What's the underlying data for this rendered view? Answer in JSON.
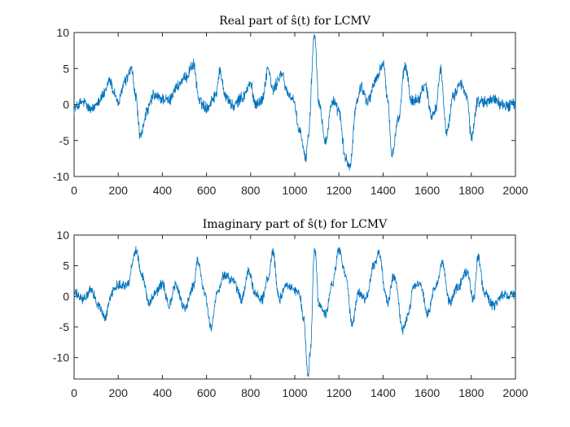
{
  "chart_data": [
    {
      "type": "line",
      "title": "Real part of ŝ(t) for LCMV",
      "xlabel": "",
      "ylabel": "",
      "xlim": [
        0,
        2000
      ],
      "ylim": [
        -10,
        10
      ],
      "xticks": [
        0,
        200,
        400,
        600,
        800,
        1000,
        1200,
        1400,
        1600,
        1800,
        2000
      ],
      "yticks": [
        -10,
        -5,
        0,
        5,
        10
      ],
      "grid": false,
      "series": [
        {
          "name": "Real part",
          "color": "#0072BD",
          "x": [
            0,
            40,
            80,
            110,
            140,
            160,
            180,
            200,
            230,
            260,
            280,
            300,
            330,
            360,
            400,
            430,
            460,
            500,
            540,
            570,
            600,
            640,
            660,
            690,
            720,
            760,
            800,
            820,
            850,
            880,
            900,
            940,
            970,
            990,
            1020,
            1050,
            1060,
            1090,
            1110,
            1140,
            1170,
            1200,
            1230,
            1250,
            1280,
            1300,
            1330,
            1370,
            1400,
            1420,
            1440,
            1470,
            1500,
            1530,
            1560,
            1590,
            1620,
            1640,
            1660,
            1690,
            1720,
            1750,
            1780,
            1800,
            1830,
            1860,
            1900,
            1950,
            2000
          ],
          "y": [
            -0.5,
            0.3,
            -0.8,
            0.6,
            1.5,
            3.5,
            1.8,
            0.2,
            3.2,
            4.8,
            1.0,
            -4.5,
            -1.0,
            1.2,
            0.8,
            0.5,
            2.3,
            3.5,
            5.5,
            0.3,
            -0.4,
            1.2,
            4.5,
            1.0,
            -0.3,
            0.9,
            2.8,
            0.2,
            0.5,
            5.0,
            2.0,
            4.2,
            1.5,
            0.9,
            -3.5,
            -7.5,
            -4.5,
            9.8,
            0.2,
            -5.0,
            0.5,
            -1.0,
            -7.5,
            -8.7,
            0.3,
            2.5,
            0.5,
            3.5,
            5.8,
            1.0,
            -6.8,
            -2.0,
            5.3,
            0.5,
            0.8,
            2.8,
            -1.5,
            -0.5,
            4.8,
            -3.8,
            1.2,
            3.0,
            1.0,
            -4.5,
            0.5,
            0.3,
            0.8,
            -0.2,
            0.1
          ]
        }
      ]
    },
    {
      "type": "line",
      "title": "Imaginary part of ŝ(t) for LCMV",
      "xlabel": "",
      "ylabel": "",
      "xlim": [
        0,
        2000
      ],
      "ylim": [
        -13.5,
        10
      ],
      "xticks": [
        0,
        200,
        400,
        600,
        800,
        1000,
        1200,
        1400,
        1600,
        1800,
        2000
      ],
      "yticks": [
        -10,
        -5,
        0,
        5,
        10
      ],
      "grid": false,
      "series": [
        {
          "name": "Imaginary part",
          "color": "#0072BD",
          "x": [
            0,
            40,
            80,
            110,
            140,
            170,
            200,
            240,
            280,
            310,
            340,
            370,
            400,
            430,
            460,
            500,
            540,
            560,
            590,
            620,
            650,
            680,
            720,
            760,
            790,
            820,
            850,
            880,
            900,
            930,
            960,
            990,
            1020,
            1040,
            1060,
            1070,
            1090,
            1110,
            1140,
            1170,
            1200,
            1230,
            1260,
            1290,
            1320,
            1360,
            1380,
            1420,
            1450,
            1490,
            1510,
            1540,
            1570,
            1600,
            1640,
            1670,
            1700,
            1740,
            1780,
            1810,
            1830,
            1860,
            1900,
            1950,
            2000
          ],
          "y": [
            0.5,
            -0.5,
            1.0,
            -1.5,
            -3.5,
            0.5,
            2.0,
            1.8,
            7.5,
            3.0,
            -1.0,
            0.8,
            2.0,
            -1.5,
            1.8,
            -2.0,
            1.5,
            6.0,
            0.8,
            -5.0,
            0.5,
            3.5,
            2.5,
            -0.5,
            4.0,
            0.5,
            -0.5,
            3.0,
            7.0,
            -0.5,
            2.0,
            1.2,
            0.5,
            -3.5,
            -13.0,
            -9.0,
            7.8,
            -1.5,
            -3.0,
            2.0,
            7.5,
            3.5,
            -4.5,
            0.5,
            -0.5,
            5.0,
            7.0,
            -1.0,
            3.5,
            -5.5,
            -3.5,
            1.5,
            2.0,
            -3.0,
            1.5,
            5.5,
            -1.0,
            1.5,
            4.0,
            -0.5,
            6.5,
            0.5,
            -1.5,
            0.2,
            0.5
          ]
        }
      ]
    }
  ]
}
